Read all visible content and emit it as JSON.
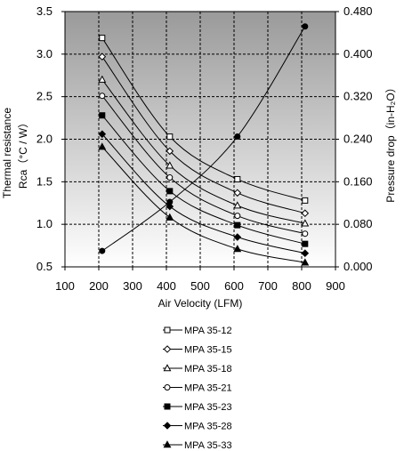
{
  "chart_data": {
    "type": "line",
    "x": [
      210,
      410,
      610,
      810
    ],
    "xlabel": "Air Velocity (LFM)",
    "xlim": [
      100,
      900
    ],
    "xticks": [
      100,
      200,
      300,
      400,
      500,
      600,
      700,
      800,
      900
    ],
    "y_left": {
      "label_line1": "Thermal resistance",
      "label_line2": "Rca（°C / W）",
      "lim": [
        0.5,
        3.5
      ],
      "ticks": [
        "0.5",
        "1.0",
        "1.5",
        "2.0",
        "2.5",
        "3.0",
        "3.5"
      ]
    },
    "y_right": {
      "label": "Pressure drop（in-H₂O）",
      "lim": [
        0,
        0.48
      ],
      "ticks": [
        "0.000",
        "0.080",
        "0.160",
        "0.240",
        "0.320",
        "0.400",
        "0.480"
      ]
    },
    "series": [
      {
        "name": "MPA 35-12",
        "marker": "square-open",
        "values": [
          3.19,
          2.03,
          1.53,
          1.28
        ]
      },
      {
        "name": "MPA 35-15",
        "marker": "diamond-open",
        "values": [
          2.97,
          1.86,
          1.37,
          1.13
        ]
      },
      {
        "name": "MPA 35-18",
        "marker": "triangle-open",
        "values": [
          2.7,
          1.69,
          1.22,
          1.01
        ]
      },
      {
        "name": "MPA 35-21",
        "marker": "circle-open",
        "values": [
          2.51,
          1.55,
          1.1,
          0.89
        ]
      },
      {
        "name": "MPA 35-23",
        "marker": "square-filled",
        "values": [
          2.28,
          1.39,
          0.99,
          0.77
        ]
      },
      {
        "name": "MPA 35-28",
        "marker": "diamond-filled",
        "values": [
          2.06,
          1.21,
          0.85,
          0.66
        ]
      },
      {
        "name": "MPA 35-33",
        "marker": "triangle-filled",
        "values": [
          1.91,
          1.08,
          0.71,
          0.55
        ]
      }
    ],
    "pressure_series": {
      "axis": "right",
      "marker": "circle-filled",
      "values": [
        0.03,
        0.122,
        0.245,
        0.452
      ]
    },
    "grid": true,
    "legend_position": "bottom"
  }
}
